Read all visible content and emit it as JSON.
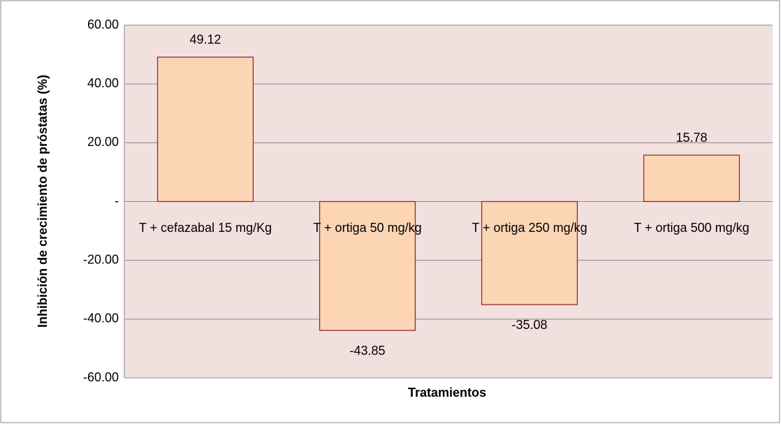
{
  "chart_data": {
    "type": "bar",
    "x_label": "Tratamientos",
    "y_label": "Inhibición de crecimiento de próstatas (%)",
    "categories": [
      "T + cefazabal 15 mg/Kg",
      "T + ortiga 50 mg/kg",
      "T + ortiga 250 mg/kg",
      "T + ortiga 500 mg/kg"
    ],
    "values": [
      49.12,
      -43.85,
      -35.08,
      15.78
    ],
    "color": "#fcd5b5",
    "ylim": [
      -60,
      60
    ],
    "yticks": [
      {
        "value": -60,
        "label": "-60.00"
      },
      {
        "value": -40,
        "label": "-40.00"
      },
      {
        "value": -20,
        "label": "-20.00"
      },
      {
        "value": 0,
        "label": "-"
      },
      {
        "value": 20,
        "label": "20.00"
      },
      {
        "value": 40,
        "label": "40.00"
      },
      {
        "value": 60,
        "label": "60.00"
      }
    ],
    "grid": true
  }
}
